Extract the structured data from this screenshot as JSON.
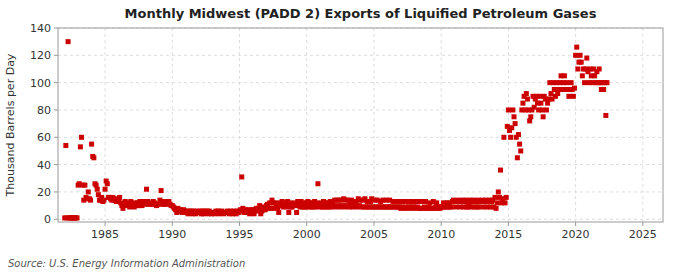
{
  "chart_data": {
    "type": "scatter",
    "title": "Monthly Midwest (PADD 2) Exports of Liquified Petroleum Gases",
    "ylabel": "Thousand Barrels per Day",
    "annotations": [
      "Source: U.S. Energy Information Administration"
    ],
    "color": "#CC0000",
    "marker": "square",
    "grid": true,
    "xlim": [
      1981.5,
      2026.5
    ],
    "ylim": [
      -2,
      140
    ],
    "xticks": [
      1985,
      1990,
      1995,
      2000,
      2005,
      2010,
      2015,
      2020,
      2025
    ],
    "yticks": [
      0,
      20,
      40,
      60,
      80,
      100,
      120,
      140
    ],
    "x": [
      1982.0,
      1982.083,
      1982.167,
      1982.25,
      1982.333,
      1982.417,
      1982.5,
      1982.583,
      1982.667,
      1982.75,
      1982.833,
      1982.917,
      1983.0,
      1983.083,
      1983.167,
      1983.25,
      1983.333,
      1983.417,
      1983.5,
      1983.583,
      1983.667,
      1983.75,
      1983.833,
      1983.917,
      1984.0,
      1984.083,
      1984.167,
      1984.25,
      1984.333,
      1984.417,
      1984.5,
      1984.583,
      1984.667,
      1984.75,
      1984.833,
      1984.917,
      1985.0,
      1985.083,
      1985.167,
      1985.25,
      1985.333,
      1985.417,
      1985.5,
      1985.583,
      1985.667,
      1985.75,
      1985.833,
      1985.917,
      1986.0,
      1986.083,
      1986.167,
      1986.25,
      1986.333,
      1986.417,
      1986.5,
      1986.583,
      1986.667,
      1986.75,
      1986.833,
      1986.917,
      1987.0,
      1987.083,
      1987.167,
      1987.25,
      1987.333,
      1987.417,
      1987.5,
      1987.583,
      1987.667,
      1987.75,
      1987.833,
      1987.917,
      1988.0,
      1988.083,
      1988.167,
      1988.25,
      1988.333,
      1988.417,
      1988.5,
      1988.583,
      1988.667,
      1988.75,
      1988.833,
      1988.917,
      1989.0,
      1989.083,
      1989.167,
      1989.25,
      1989.333,
      1989.417,
      1989.5,
      1989.583,
      1989.667,
      1989.75,
      1989.833,
      1989.917,
      1990.0,
      1990.083,
      1990.167,
      1990.25,
      1990.333,
      1990.417,
      1990.5,
      1990.583,
      1990.667,
      1990.75,
      1990.833,
      1990.917,
      1991.0,
      1991.083,
      1991.167,
      1991.25,
      1991.333,
      1991.417,
      1991.5,
      1991.583,
      1991.667,
      1991.75,
      1991.833,
      1991.917,
      1992.0,
      1992.083,
      1992.167,
      1992.25,
      1992.333,
      1992.417,
      1992.5,
      1992.583,
      1992.667,
      1992.75,
      1992.833,
      1992.917,
      1993.0,
      1993.083,
      1993.167,
      1993.25,
      1993.333,
      1993.417,
      1993.5,
      1993.583,
      1993.667,
      1993.75,
      1993.833,
      1993.917,
      1994.0,
      1994.083,
      1994.167,
      1994.25,
      1994.333,
      1994.417,
      1994.5,
      1994.583,
      1994.667,
      1994.75,
      1994.833,
      1994.917,
      1995.0,
      1995.083,
      1995.167,
      1995.25,
      1995.333,
      1995.417,
      1995.5,
      1995.583,
      1995.667,
      1995.75,
      1995.833,
      1995.917,
      1996.0,
      1996.083,
      1996.167,
      1996.25,
      1996.333,
      1996.417,
      1996.5,
      1996.583,
      1996.667,
      1996.75,
      1996.833,
      1996.917,
      1997.0,
      1997.083,
      1997.167,
      1997.25,
      1997.333,
      1997.417,
      1997.5,
      1997.583,
      1997.667,
      1997.75,
      1997.833,
      1997.917,
      1998.0,
      1998.083,
      1998.167,
      1998.25,
      1998.333,
      1998.417,
      1998.5,
      1998.583,
      1998.667,
      1998.75,
      1998.833,
      1998.917,
      1999.0,
      1999.083,
      1999.167,
      1999.25,
      1999.333,
      1999.417,
      1999.5,
      1999.583,
      1999.667,
      1999.75,
      1999.833,
      1999.917,
      2000.0,
      2000.083,
      2000.167,
      2000.25,
      2000.333,
      2000.417,
      2000.5,
      2000.583,
      2000.667,
      2000.75,
      2000.833,
      2000.917,
      2001.0,
      2001.083,
      2001.167,
      2001.25,
      2001.333,
      2001.417,
      2001.5,
      2001.583,
      2001.667,
      2001.75,
      2001.833,
      2001.917,
      2002.0,
      2002.083,
      2002.167,
      2002.25,
      2002.333,
      2002.417,
      2002.5,
      2002.583,
      2002.667,
      2002.75,
      2002.833,
      2002.917,
      2003.0,
      2003.083,
      2003.167,
      2003.25,
      2003.333,
      2003.417,
      2003.5,
      2003.583,
      2003.667,
      2003.75,
      2003.833,
      2003.917,
      2004.0,
      2004.083,
      2004.167,
      2004.25,
      2004.333,
      2004.417,
      2004.5,
      2004.583,
      2004.667,
      2004.75,
      2004.833,
      2004.917,
      2005.0,
      2005.083,
      2005.167,
      2005.25,
      2005.333,
      2005.417,
      2005.5,
      2005.583,
      2005.667,
      2005.75,
      2005.833,
      2005.917,
      2006.0,
      2006.083,
      2006.167,
      2006.25,
      2006.333,
      2006.417,
      2006.5,
      2006.583,
      2006.667,
      2006.75,
      2006.833,
      2006.917,
      2007.0,
      2007.083,
      2007.167,
      2007.25,
      2007.333,
      2007.417,
      2007.5,
      2007.583,
      2007.667,
      2007.75,
      2007.833,
      2007.917,
      2008.0,
      2008.083,
      2008.167,
      2008.25,
      2008.333,
      2008.417,
      2008.5,
      2008.583,
      2008.667,
      2008.75,
      2008.833,
      2008.917,
      2009.0,
      2009.083,
      2009.167,
      2009.25,
      2009.333,
      2009.417,
      2009.5,
      2009.583,
      2009.667,
      2009.75,
      2009.833,
      2009.917,
      2010.0,
      2010.083,
      2010.167,
      2010.25,
      2010.333,
      2010.417,
      2010.5,
      2010.583,
      2010.667,
      2010.75,
      2010.833,
      2010.917,
      2011.0,
      2011.083,
      2011.167,
      2011.25,
      2011.333,
      2011.417,
      2011.5,
      2011.583,
      2011.667,
      2011.75,
      2011.833,
      2011.917,
      2012.0,
      2012.083,
      2012.167,
      2012.25,
      2012.333,
      2012.417,
      2012.5,
      2012.583,
      2012.667,
      2012.75,
      2012.833,
      2012.917,
      2013.0,
      2013.083,
      2013.167,
      2013.25,
      2013.333,
      2013.417,
      2013.5,
      2013.583,
      2013.667,
      2013.75,
      2013.833,
      2013.917,
      2014.0,
      2014.083,
      2014.167,
      2014.25,
      2014.333,
      2014.417,
      2014.5,
      2014.583,
      2014.667,
      2014.75,
      2014.833,
      2014.917,
      2015.0,
      2015.083,
      2015.167,
      2015.25,
      2015.333,
      2015.417,
      2015.5,
      2015.583,
      2015.667,
      2015.75,
      2015.833,
      2015.917,
      2016.0,
      2016.083,
      2016.167,
      2016.25,
      2016.333,
      2016.417,
      2016.5,
      2016.583,
      2016.667,
      2016.75,
      2016.833,
      2016.917,
      2017.0,
      2017.083,
      2017.167,
      2017.25,
      2017.333,
      2017.417,
      2017.5,
      2017.583,
      2017.667,
      2017.75,
      2017.833,
      2017.917,
      2018.0,
      2018.083,
      2018.167,
      2018.25,
      2018.333,
      2018.417,
      2018.5,
      2018.583,
      2018.667,
      2018.75,
      2018.833,
      2018.917,
      2019.0,
      2019.083,
      2019.167,
      2019.25,
      2019.333,
      2019.417,
      2019.5,
      2019.583,
      2019.667,
      2019.75,
      2019.833,
      2019.917,
      2020.0,
      2020.083,
      2020.167,
      2020.25,
      2020.333,
      2020.417,
      2020.5,
      2020.583,
      2020.667,
      2020.75,
      2020.833,
      2020.917,
      2021.0,
      2021.083,
      2021.167,
      2021.25,
      2021.333,
      2021.417,
      2021.5,
      2021.583,
      2021.667,
      2021.75,
      2021.833,
      2021.917,
      2022.0,
      2022.083,
      2022.167,
      2022.25,
      2022.333
    ],
    "values": [
      1,
      54,
      1,
      130,
      1,
      1,
      1,
      1,
      1,
      1,
      1,
      1,
      25,
      26,
      53,
      60,
      25,
      14,
      25,
      16,
      15,
      20,
      15,
      14,
      55,
      46,
      45,
      26,
      25,
      22,
      18,
      14,
      14,
      16,
      13,
      14,
      22,
      28,
      26,
      16,
      16,
      15,
      14,
      16,
      14,
      14,
      13,
      15,
      14,
      16,
      12,
      10,
      8,
      11,
      13,
      10,
      12,
      11,
      9,
      13,
      11,
      10,
      9,
      12,
      10,
      12,
      10,
      13,
      11,
      10,
      13,
      12,
      11,
      22,
      13,
      11,
      12,
      11,
      11,
      13,
      12,
      11,
      10,
      11,
      11,
      14,
      21,
      13,
      11,
      11,
      12,
      13,
      11,
      13,
      11,
      10,
      10,
      9,
      8,
      7,
      5,
      8,
      6,
      7,
      6,
      5,
      7,
      6,
      5,
      6,
      4,
      6,
      5,
      6,
      4,
      6,
      5,
      4,
      6,
      5,
      5,
      6,
      4,
      6,
      4,
      6,
      5,
      6,
      4,
      6,
      5,
      4,
      5,
      5,
      4,
      6,
      5,
      6,
      4,
      5,
      6,
      5,
      4,
      5,
      5,
      6,
      5,
      4,
      6,
      5,
      4,
      6,
      5,
      4,
      6,
      5,
      6,
      7,
      31,
      8,
      5,
      7,
      6,
      5,
      7,
      4,
      6,
      7,
      7,
      4,
      7,
      8,
      6,
      8,
      10,
      4,
      6,
      9,
      7,
      7,
      10,
      11,
      8,
      12,
      8,
      14,
      12,
      8,
      12,
      10,
      8,
      5,
      12,
      10,
      13,
      9,
      12,
      12,
      9,
      13,
      5,
      12,
      9,
      9,
      11,
      12,
      10,
      5,
      13,
      12,
      9,
      13,
      9,
      12,
      9,
      9,
      12,
      13,
      9,
      12,
      9,
      12,
      9,
      13,
      9,
      12,
      26,
      11,
      9,
      12,
      9,
      13,
      9,
      12,
      9,
      12,
      9,
      13,
      9,
      12,
      10,
      14,
      9,
      14,
      10,
      14,
      9,
      14,
      10,
      15,
      9,
      14,
      10,
      14,
      9,
      12,
      14,
      9,
      12,
      10,
      13,
      9,
      15,
      10,
      14,
      9,
      14,
      9,
      15,
      9,
      13,
      9,
      9,
      13,
      15,
      9,
      9,
      14,
      9,
      14,
      9,
      9,
      13,
      9,
      14,
      9,
      9,
      14,
      9,
      9,
      14,
      9,
      9,
      13,
      9,
      13,
      9,
      9,
      13,
      9,
      8,
      9,
      13,
      8,
      9,
      13,
      8,
      9,
      9,
      13,
      8,
      9,
      9,
      13,
      8,
      9,
      13,
      8,
      8,
      13,
      8,
      9,
      13,
      8,
      8,
      9,
      12,
      8,
      8,
      13,
      8,
      9,
      12,
      8,
      9,
      8,
      9,
      9,
      12,
      9,
      9,
      12,
      9,
      12,
      9,
      9,
      13,
      14,
      13,
      9,
      13,
      14,
      13,
      9,
      13,
      14,
      9,
      13,
      14,
      9,
      9,
      12,
      14,
      9,
      13,
      14,
      9,
      13,
      9,
      14,
      9,
      13,
      13,
      14,
      9,
      13,
      14,
      9,
      13,
      14,
      9,
      13,
      14,
      9,
      16,
      8,
      12,
      20,
      16,
      36,
      12,
      15,
      60,
      12,
      16,
      68,
      80,
      65,
      60,
      67,
      80,
      75,
      70,
      60,
      45,
      62,
      55,
      50,
      80,
      85,
      90,
      80,
      92,
      88,
      80,
      72,
      75,
      80,
      90,
      82,
      88,
      90,
      85,
      80,
      90,
      85,
      80,
      75,
      90,
      88,
      80,
      85,
      88,
      100,
      92,
      88,
      100,
      95,
      90,
      100,
      92,
      95,
      100,
      105,
      95,
      100,
      105,
      95,
      100,
      95,
      90,
      95,
      100,
      95,
      90,
      96,
      120,
      126,
      110,
      115,
      120,
      115,
      105,
      110,
      100,
      110,
      118,
      108,
      100,
      110,
      105,
      100,
      110,
      105,
      100,
      108,
      100,
      110,
      100,
      95,
      100,
      95,
      100,
      76,
      100
    ]
  }
}
